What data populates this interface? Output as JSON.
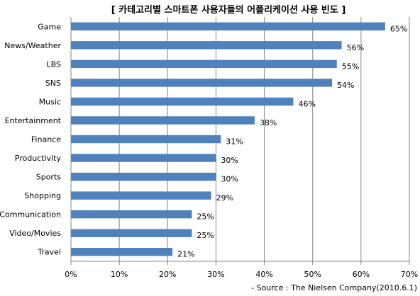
{
  "chart_data": {
    "type": "bar",
    "orientation": "horizontal",
    "title": "[ 카테고리별 스마트폰 사용자들의 어플리케이션 사용 빈도 ]",
    "categories": [
      "Game",
      "News/Weather",
      "LBS",
      "SNS",
      "Music",
      "Entertainment",
      "Finance",
      "Productivity",
      "Sports",
      "Shopping",
      "Communication",
      "Video/Movies",
      "Travel"
    ],
    "values": [
      65,
      56,
      55,
      54,
      46,
      38,
      31,
      30,
      30,
      29,
      25,
      25,
      21
    ],
    "value_labels": [
      "65%",
      "56%",
      "55%",
      "54%",
      "46%",
      "38%",
      "31%",
      "30%",
      "30%",
      "29%",
      "25%",
      "25%",
      "21%"
    ],
    "xlim": [
      0,
      70
    ],
    "x_ticks": [
      0,
      10,
      20,
      30,
      40,
      50,
      60,
      70
    ],
    "x_tick_labels": [
      "0%",
      "10%",
      "20%",
      "30%",
      "40%",
      "50%",
      "60%",
      "70%"
    ],
    "xlabel": "",
    "ylabel": "",
    "grid": true,
    "legend": "none",
    "source": "- Source : The Nielsen Company(2010.6.1)",
    "bar_color": "#4F81BD",
    "grid_color": "#868686"
  }
}
